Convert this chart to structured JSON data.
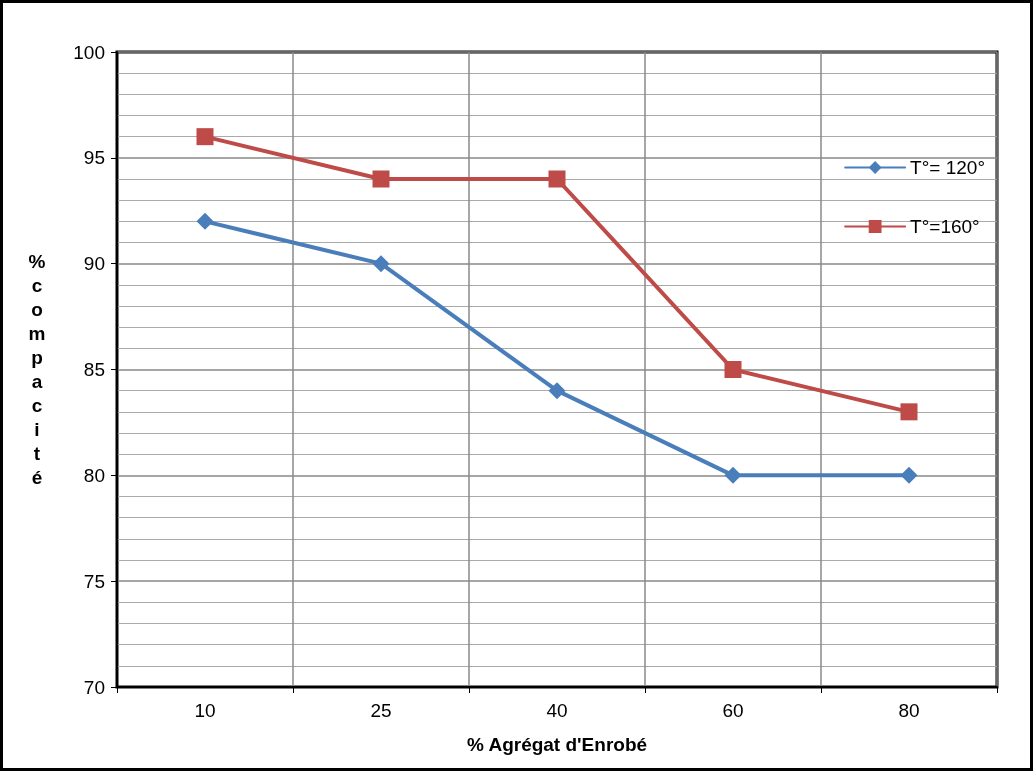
{
  "chart_data": {
    "type": "line",
    "xlabel": "% Agrégat d'Enrobé",
    "ylabel": "% compacité",
    "categories": [
      "10",
      "25",
      "40",
      "60",
      "80"
    ],
    "series": [
      {
        "name": "T°= 120°",
        "color": "#4a7ebb",
        "marker": "diamond",
        "values": [
          92,
          90,
          84,
          80,
          80
        ]
      },
      {
        "name": "T°=160°",
        "color": "#be4b48",
        "marker": "square",
        "values": [
          96,
          94,
          94,
          85,
          83
        ]
      }
    ],
    "ylim": [
      70,
      100
    ],
    "yticks": [
      70,
      75,
      80,
      85,
      90,
      95,
      100
    ],
    "grid": true,
    "legend": "top right",
    "line_style": "solid"
  }
}
